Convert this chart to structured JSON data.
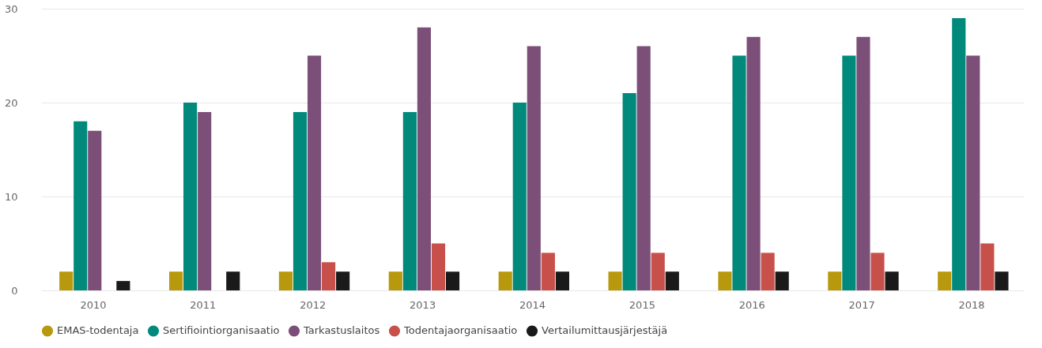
{
  "chart_data": {
    "type": "bar",
    "categories": [
      "2010",
      "2011",
      "2012",
      "2013",
      "2014",
      "2015",
      "2016",
      "2017",
      "2018"
    ],
    "series": [
      {
        "name": "EMAS-todentaja",
        "color": "#b8990e",
        "values": [
          2,
          2,
          2,
          2,
          2,
          2,
          2,
          2,
          2
        ]
      },
      {
        "name": "Sertifiointiorganisaatio",
        "color": "#01897b",
        "values": [
          18,
          20,
          19,
          19,
          20,
          21,
          25,
          25,
          29
        ]
      },
      {
        "name": "Tarkastuslaitos",
        "color": "#7b4f78",
        "values": [
          17,
          19,
          25,
          28,
          26,
          26,
          27,
          27,
          25
        ]
      },
      {
        "name": "Todentajaorganisaatio",
        "color": "#c8504b",
        "values": [
          null,
          null,
          3,
          5,
          4,
          4,
          4,
          4,
          5
        ]
      },
      {
        "name": "Vertailumittausjärjestäjä",
        "color": "#1a1a1a",
        "values": [
          1,
          2,
          2,
          2,
          2,
          2,
          2,
          2,
          2
        ]
      }
    ],
    "ylim": [
      0,
      30
    ],
    "yticks": [
      0,
      10,
      20,
      30
    ],
    "grid": "y",
    "legend": "bottom"
  }
}
